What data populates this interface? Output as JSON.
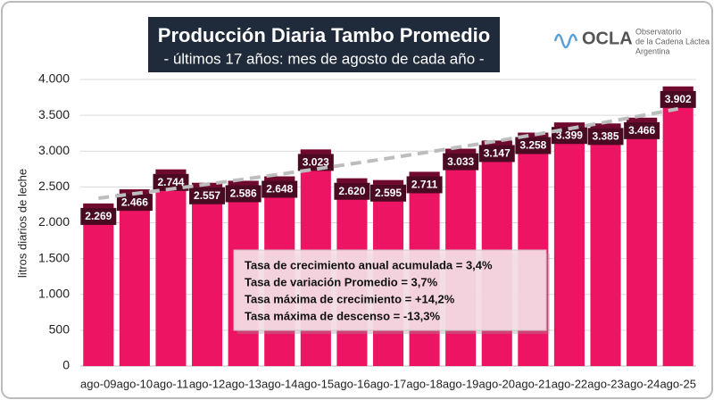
{
  "chart_data": {
    "type": "bar",
    "title": "Producción Diaria Tambo Promedio",
    "subtitle": "- últimos 17 años: mes de agosto de cada año -",
    "y_label": "litros diarios de leche",
    "logo": {
      "name": "OCLA",
      "line1": "Observatorio",
      "line2": "de la Cadena Láctea",
      "line3": "Argentina"
    },
    "categories": [
      "ago-09",
      "ago-10",
      "ago-11",
      "ago-12",
      "ago-13",
      "ago-14",
      "ago-15",
      "ago-16",
      "ago-17",
      "ago-18",
      "ago-19",
      "ago-20",
      "ago-21",
      "ago-22",
      "ago-23",
      "ago-24",
      "ago-25"
    ],
    "values": [
      2269,
      2466,
      2744,
      2557,
      2586,
      2648,
      3023,
      2620,
      2595,
      2711,
      3033,
      3147,
      3258,
      3399,
      3385,
      3466,
      3902
    ],
    "value_labels": [
      "2.269",
      "2.466",
      "2.744",
      "2.557",
      "2.586",
      "2.648",
      "3.023",
      "2.620",
      "2.595",
      "2.711",
      "3.033",
      "3.147",
      "3.258",
      "3.399",
      "3.385",
      "3.466",
      "3.902"
    ],
    "color": "#ee1464",
    "cap_color": "#6e0a2e",
    "ylim": [
      0,
      4000
    ],
    "yticks": [
      0,
      500,
      {
        "value": 1000,
        "label": "1.000"
      },
      {
        "value": 1500,
        "label": "1.500"
      },
      {
        "value": 2000,
        "label": "2.000"
      },
      {
        "value": 2500,
        "label": "2.500"
      },
      {
        "value": 3000,
        "label": "3.000"
      },
      {
        "value": 3500,
        "label": "3.500"
      },
      {
        "value": 4000,
        "label": "4.000"
      }
    ],
    "grid": true,
    "trendline": true,
    "annotations": [
      "Tasa de crecimiento anual acumulada = 3,4%",
      "Tasa de variación  Promedio = 3,7%",
      "Tasa máxima de crecimiento = +14,2%",
      "Tasa máxima de descenso = -13,3%"
    ]
  }
}
